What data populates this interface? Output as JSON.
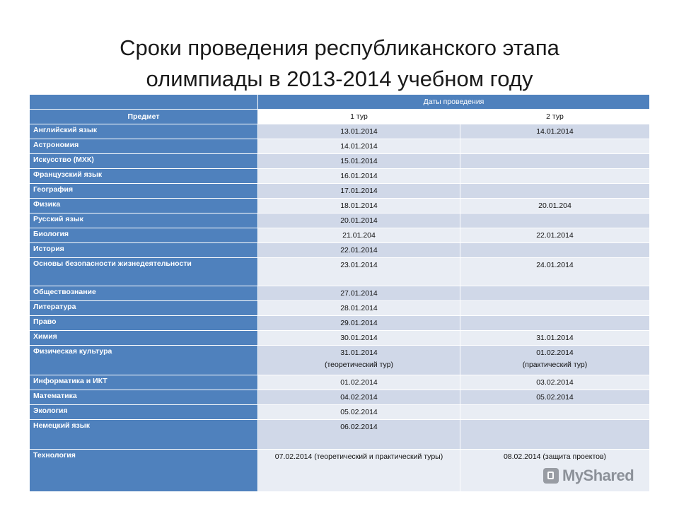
{
  "title": {
    "line1": "Сроки проведения республиканского этапа",
    "line2": "олимпиады в 2013-2014 учебном году"
  },
  "table": {
    "header_dates": "Даты проведения",
    "header_subject": "Предмет",
    "header_tour1": "1 тур",
    "header_tour2": "2 тур",
    "rows": [
      {
        "subject": "Английский язык",
        "t1": "13.01.2014",
        "t1_note": "",
        "t2": "14.01.2014",
        "t2_note": ""
      },
      {
        "subject": "Астрономия",
        "t1": "14.01.2014",
        "t1_note": "",
        "t2": "",
        "t2_note": ""
      },
      {
        "subject": "Искусство (МХК)",
        "t1": "15.01.2014",
        "t1_note": "",
        "t2": "",
        "t2_note": ""
      },
      {
        "subject": "Французский язык",
        "t1": "16.01.2014",
        "t1_note": "",
        "t2": "",
        "t2_note": ""
      },
      {
        "subject": "География",
        "t1": "17.01.2014",
        "t1_note": "",
        "t2": "",
        "t2_note": ""
      },
      {
        "subject": "Физика",
        "t1": "18.01.2014",
        "t1_note": "",
        "t2": "20.01.204",
        "t2_note": ""
      },
      {
        "subject": "Русский язык",
        "t1": "20.01.2014",
        "t1_note": "",
        "t2": "",
        "t2_note": ""
      },
      {
        "subject": "Биология",
        "t1": "21.01.204",
        "t1_note": "",
        "t2": "22.01.2014",
        "t2_note": ""
      },
      {
        "subject": "История",
        "t1": "22.01.2014",
        "t1_note": "",
        "t2": "",
        "t2_note": ""
      },
      {
        "subject": "Основы безопасности жизнедеятельности",
        "t1": "23.01.2014",
        "t1_note": "",
        "t2": "24.01.2014",
        "t2_note": ""
      },
      {
        "subject": "Обществознание",
        "t1": "27.01.2014",
        "t1_note": "",
        "t2": "",
        "t2_note": ""
      },
      {
        "subject": "Литература",
        "t1": "28.01.2014",
        "t1_note": "",
        "t2": "",
        "t2_note": ""
      },
      {
        "subject": "Право",
        "t1": "29.01.2014",
        "t1_note": "",
        "t2": "",
        "t2_note": ""
      },
      {
        "subject": "Химия",
        "t1": "30.01.2014",
        "t1_note": "",
        "t2": "31.01.2014",
        "t2_note": ""
      },
      {
        "subject": "Физическая культура",
        "t1": "31.01.2014",
        "t1_note": "(теоретический тур)",
        "t2": "01.02.2014",
        "t2_note": "(практический тур)"
      },
      {
        "subject": "Информатика и ИКТ",
        "t1": "01.02.2014",
        "t1_note": "",
        "t2": "03.02.2014",
        "t2_note": ""
      },
      {
        "subject": "Математика",
        "t1": "04.02.2014",
        "t1_note": "",
        "t2": "05.02.2014",
        "t2_note": ""
      },
      {
        "subject": "Экология",
        "t1": "05.02.2014",
        "t1_note": "",
        "t2": "",
        "t2_note": ""
      },
      {
        "subject": "Немецкий язык",
        "t1": "06.02.2014",
        "t1_note": "",
        "t2": "",
        "t2_note": ""
      },
      {
        "subject": "Технология",
        "t1": "07.02.2014 (теоретический и практический туры)",
        "t1_note": "",
        "t2": "08.02.2014 (защита проектов)",
        "t2_note": ""
      }
    ]
  },
  "watermark": {
    "text": "MyShared",
    "icon": "myshared-logo-icon"
  },
  "colors": {
    "header_blue": "#4f81bd",
    "row_dark": "#d0d8e8",
    "row_light": "#e9edf4"
  }
}
